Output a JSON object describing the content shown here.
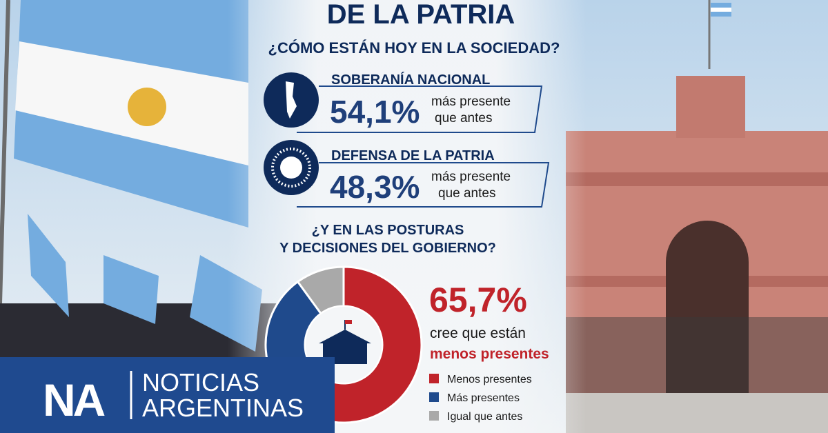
{
  "header": {
    "title": "DE LA PATRIA",
    "subtitle": "¿CÓMO ESTÁN HOY EN LA SOCIEDAD?"
  },
  "stats": [
    {
      "label": "SOBERANÍA NACIONAL",
      "value": "54,1%",
      "note": [
        "más presente",
        "que antes"
      ]
    },
    {
      "label": "DEFENSA DE LA PATRIA",
      "value": "48,3%",
      "note": [
        "más presente",
        "que antes"
      ]
    }
  ],
  "chart_data": {
    "type": "pie",
    "title": [
      "¿Y EN LAS POSTURAS",
      "Y DECISIONES DEL GOBIERNO?"
    ],
    "categories": [
      "Menos presentes",
      "Más presentes",
      "Igual que antes"
    ],
    "values": [
      65.7,
      24.3,
      10
    ],
    "value_labels": [
      "65,7%",
      null,
      null
    ],
    "colors": [
      "#c0232a",
      "#1f4a8c",
      "#a9a9a9"
    ],
    "annotation": [
      "cree que están",
      "menos presentes"
    ]
  },
  "brand": {
    "short": "NA",
    "line1": "NOTICIAS",
    "line2": "ARGENTINAS"
  }
}
